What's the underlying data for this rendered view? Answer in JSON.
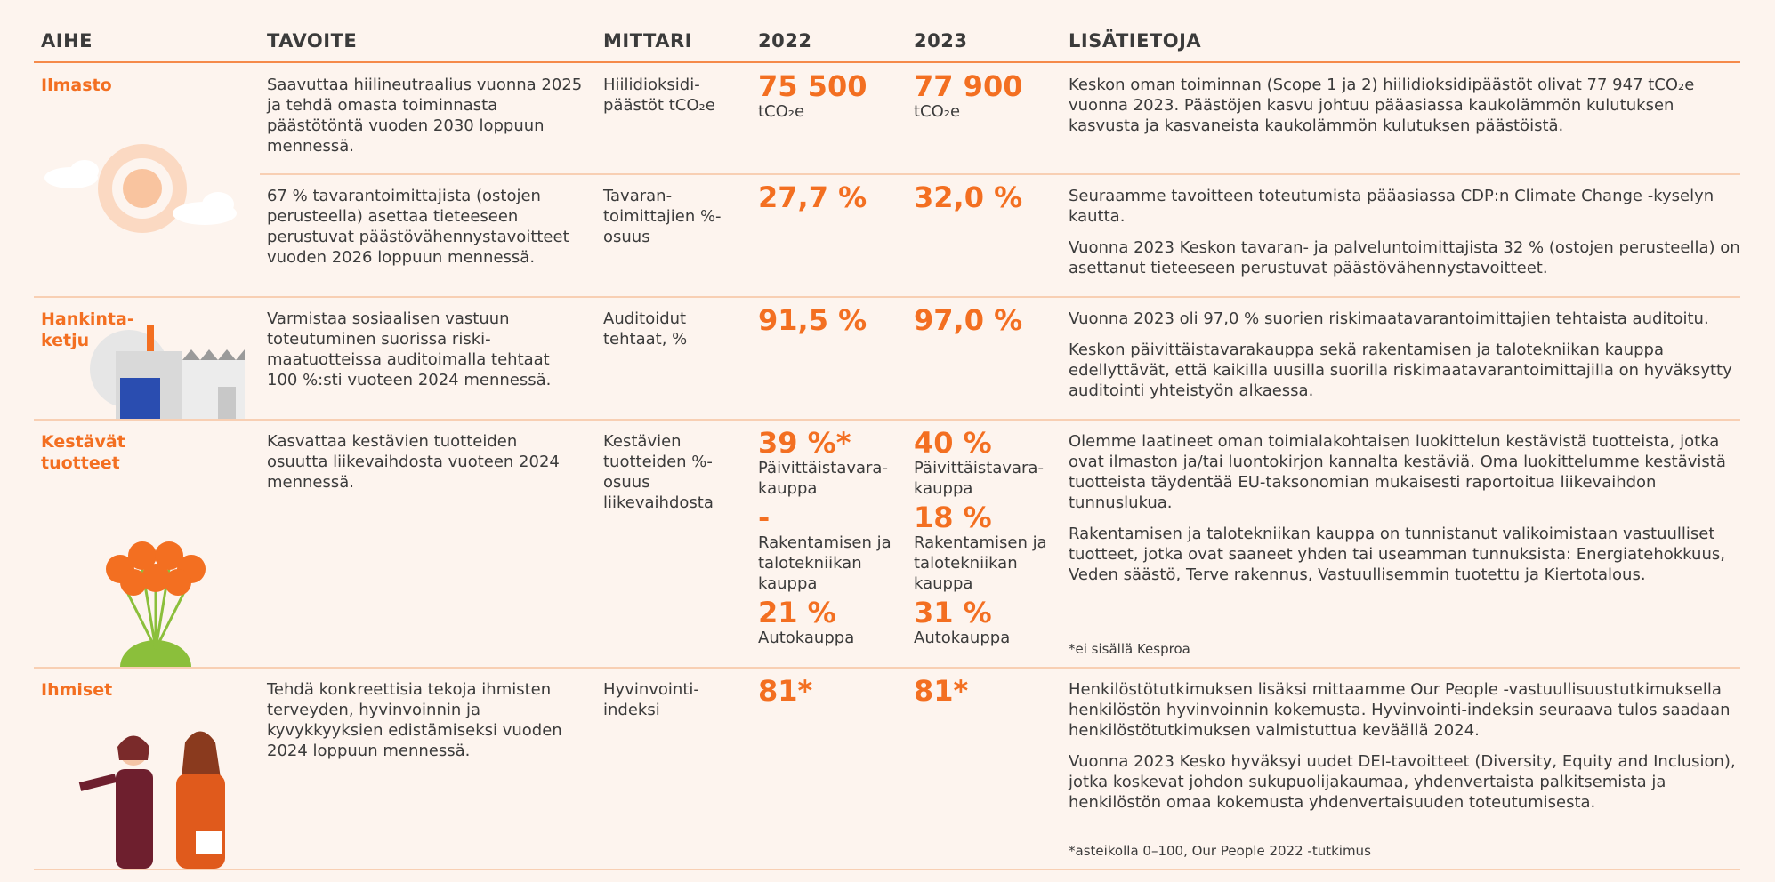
{
  "table": {
    "columns": [
      "AIHE",
      "TAVOITE",
      "MITTARI",
      "2022",
      "2023",
      "LISÄTIETOJA"
    ],
    "rows": [
      {
        "topic": "Ilmasto",
        "items": [
          {
            "goal": "Saavuttaa hiilineutraalius vuonna 2025 ja tehdä omasta toiminnasta päästötöntä vuoden 2030 loppuun mennessä.",
            "metric": "Hiilidioksidi-päästöt tCO₂e",
            "y2022": [
              {
                "value": "75 500",
                "label": "tCO₂e"
              }
            ],
            "y2023": [
              {
                "value": "77 900",
                "label": "tCO₂e"
              }
            ],
            "info": [
              "Keskon oman toiminnan (Scope 1 ja 2) hiilidioksidipäästöt olivat 77 947 tCO₂e vuonna 2023. Päästöjen kasvu johtuu pääasiassa kaukolämmön kulutuksen kasvusta ja kasvaneista kaukolämmön kulutuksen päästöistä."
            ]
          },
          {
            "goal": "67 % tavarantoimittajista (ostojen perusteella) asettaa tieteeseen perustuvat päästövähennystavoitteet vuoden 2026 loppuun mennessä.",
            "metric": "Tavaran-toimittajien %-osuus",
            "y2022": [
              {
                "value": "27,7 %"
              }
            ],
            "y2023": [
              {
                "value": "32,0 %"
              }
            ],
            "info": [
              "Seuraamme tavoitteen toteutumista pääasiassa CDP:n Climate Change -kyselyn kautta.",
              "Vuonna 2023 Keskon tavaran- ja palveluntoimittajista 32 % (ostojen perusteella) on asettanut tieteeseen perustuvat päästövähennystavoitteet."
            ]
          }
        ]
      },
      {
        "topic": "Hankinta-ketju",
        "items": [
          {
            "goal": "Varmistaa sosiaalisen vastuun toteutuminen suorissa riski-maatuotteissa auditoimalla tehtaat 100 %:sti vuoteen 2024 mennessä.",
            "metric": "Auditoidut tehtaat, %",
            "y2022": [
              {
                "value": "91,5 %"
              }
            ],
            "y2023": [
              {
                "value": "97,0 %"
              }
            ],
            "info": [
              "Vuonna 2023 oli 97,0 % suorien riskimaatavarantoimittajien tehtaista auditoitu.",
              "Keskon päivittäistavarakauppa sekä rakentamisen ja talotekniikan kauppa edellyttävät, että kaikilla uusilla suorilla riskimaatavarantoimittajilla on hyväksytty auditointi yhteistyön alkaessa."
            ]
          }
        ]
      },
      {
        "topic": "Kestävät tuotteet",
        "items": [
          {
            "goal": "Kasvattaa kestävien tuotteiden osuutta liikevaihdosta vuoteen 2024 mennessä.",
            "metric": "Kestävien tuotteiden %-osuus liikevaihdosta",
            "y2022": [
              {
                "value": "39 %*",
                "label": "Päivittäistavara-kauppa"
              },
              {
                "value": "-",
                "label": "Rakentamisen ja talotekniikan kauppa"
              },
              {
                "value": "21 %",
                "label": "Autokauppa"
              }
            ],
            "y2023": [
              {
                "value": "40 %",
                "label": "Päivittäistavara-kauppa"
              },
              {
                "value": "18 %",
                "label": "Rakentamisen ja talotekniikan kauppa"
              },
              {
                "value": "31 %",
                "label": "Autokauppa"
              }
            ],
            "info": [
              "Olemme laatineet oman toimialakohtaisen luokittelun kestävistä tuotteista, jotka ovat ilmaston ja/tai luontokirjon kannalta kestäviä. Oma luokittelumme kestävistä tuotteista täydentää EU-taksonomian mukaisesti raportoitua liikevaihdon tunnuslukua.",
              "Rakentamisen ja talotekniikan kauppa on tunnistanut valikoimistaan vastuulliset tuotteet, jotka ovat saaneet yhden tai useamman tunnuksista: Energiatehokkuus, Veden säästö, Terve rakennus, Vastuullisemmin tuotettu ja Kiertotalous."
            ],
            "footnote": "*ei sisällä Kesproa"
          }
        ]
      },
      {
        "topic": "Ihmiset",
        "items": [
          {
            "goal": "Tehdä konkreettisia tekoja ihmisten terveyden, hyvinvoinnin ja kyvykkyyksien edistämiseksi vuoden 2024 loppuun mennessä.",
            "metric": "Hyvinvointi-indeksi",
            "y2022": [
              {
                "value": "81*"
              }
            ],
            "y2023": [
              {
                "value": "81*"
              }
            ],
            "info": [
              "Henkilöstötutkimuksen lisäksi mittaamme Our People -vastuullisuustutkimuksella henkilöstön hyvinvoinnin kokemusta. Hyvinvointi-indeksin seuraava tulos saadaan henkilöstötutkimuksen valmistuttua keväällä 2024.",
              "Vuonna 2023 Kesko hyväksyi uudet DEI-tavoitteet (Diversity, Equity and Inclusion), jotka koskevat johdon sukupuolijakaumaa, yhdenvertaista palkitsemista ja henkilöstön omaa kokemusta yhdenvertaisuuden toteutumisesta."
            ],
            "footnote": "*asteikolla 0–100, Our People 2022 -tutkimus"
          }
        ]
      }
    ]
  }
}
